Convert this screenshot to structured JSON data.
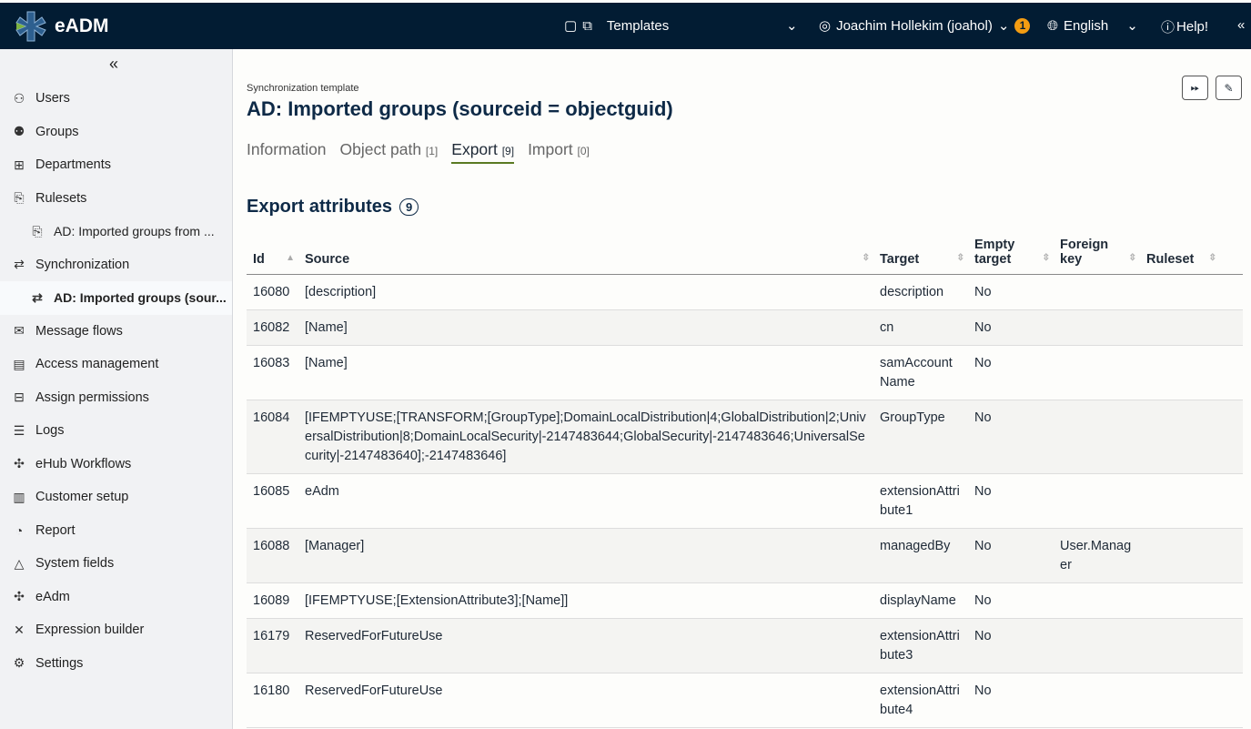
{
  "header": {
    "brand": "eADM",
    "context": "Templates",
    "user": "Joachim Hollekim (joahol)",
    "notifications": "1",
    "language": "English",
    "help": "Help!"
  },
  "sidebar": {
    "items": [
      {
        "label": "Users",
        "icon": "user-icon"
      },
      {
        "label": "Groups",
        "icon": "groups-icon"
      },
      {
        "label": "Departments",
        "icon": "org-chart-icon"
      },
      {
        "label": "Rulesets",
        "icon": "ruleset-icon"
      },
      {
        "label": "AD: Imported groups from ...",
        "icon": "ruleset-icon",
        "sub": true
      },
      {
        "label": "Synchronization",
        "icon": "sync-icon"
      },
      {
        "label": "AD: Imported groups (sour...",
        "icon": "sync-icon",
        "sub": true,
        "active": true
      },
      {
        "label": "Message flows",
        "icon": "message-icon"
      },
      {
        "label": "Access management",
        "icon": "access-icon"
      },
      {
        "label": "Assign permissions",
        "icon": "permissions-icon"
      },
      {
        "label": "Logs",
        "icon": "logs-icon"
      },
      {
        "label": "eHub Workflows",
        "icon": "puzzle-icon"
      },
      {
        "label": "Customer setup",
        "icon": "building-icon"
      },
      {
        "label": "Report",
        "icon": "report-icon"
      },
      {
        "label": "System fields",
        "icon": "shapes-icon"
      },
      {
        "label": "eAdm",
        "icon": "puzzle-info-icon"
      },
      {
        "label": "Expression builder",
        "icon": "tools-icon"
      },
      {
        "label": "Settings",
        "icon": "gear-icon"
      }
    ]
  },
  "page": {
    "kicker": "Synchronization template",
    "title": "AD: Imported groups (sourceid = objectguid)",
    "tabs": [
      {
        "label": "Information",
        "count": ""
      },
      {
        "label": "Object path",
        "count": "[1]"
      },
      {
        "label": "Export",
        "count": "[9]"
      },
      {
        "label": "Import",
        "count": "[0]"
      }
    ],
    "section": "Export attributes",
    "section_count": "9"
  },
  "table": {
    "columns": [
      "Id",
      "Source",
      "Target",
      "Empty target",
      "Foreign key",
      "Ruleset"
    ],
    "rows": [
      [
        "16080",
        "[description]",
        "description",
        "No",
        "",
        ""
      ],
      [
        "16082",
        "[Name]",
        "cn",
        "No",
        "",
        ""
      ],
      [
        "16083",
        "[Name]",
        "samAccountName",
        "No",
        "",
        ""
      ],
      [
        "16084",
        "[IFEMPTYUSE;[TRANSFORM;[GroupType];DomainLocalDistribution|4;GlobalDistribution|2;UniversalDistribution|8;DomainLocalSecurity|-2147483644;GlobalSecurity|-2147483646;UniversalSecurity|-2147483640];-2147483646]",
        "GroupType",
        "No",
        "",
        ""
      ],
      [
        "16085",
        "eAdm",
        "extensionAttribute1",
        "No",
        "",
        ""
      ],
      [
        "16088",
        "[Manager]",
        "managedBy",
        "No",
        "User.Manager",
        ""
      ],
      [
        "16089",
        "[IFEMPTYUSE;[ExtensionAttribute3];[Name]]",
        "displayName",
        "No",
        "",
        ""
      ],
      [
        "16179",
        "ReservedForFutureUse",
        "extensionAttribute3",
        "No",
        "",
        ""
      ],
      [
        "16180",
        "ReservedForFutureUse",
        "extensionAttribute4",
        "No",
        "",
        ""
      ]
    ]
  }
}
